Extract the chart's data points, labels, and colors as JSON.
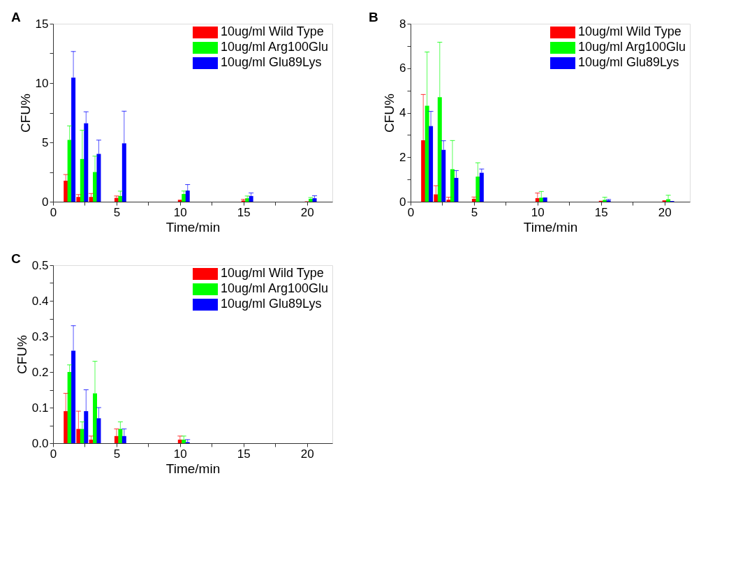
{
  "chart_data": [
    {
      "type": "bar",
      "title": "A",
      "xlabel": "Time/min",
      "ylabel": "CFU%",
      "xlim": [
        0,
        22
      ],
      "xticks": [
        0,
        {
          "value": 2.5,
          "label": null
        },
        5,
        {
          "value": 7.5,
          "label": null
        },
        10,
        {
          "value": 12.5,
          "label": null
        },
        15,
        {
          "value": 17.5,
          "label": null
        },
        20
      ],
      "ylim": [
        0,
        15
      ],
      "yticks": [
        0,
        {
          "value": 2.5,
          "label": null
        },
        5,
        {
          "value": 7.5,
          "label": null
        },
        10,
        {
          "value": 12.5,
          "label": null
        },
        15
      ],
      "grid": false,
      "legend": "top right",
      "series": [
        {
          "name": "10ug/ml Wild Type",
          "color": "#ff0000",
          "x": [
            1,
            2,
            3,
            5,
            10,
            15,
            20
          ],
          "values": [
            1.77,
            0.4,
            0.4,
            0.32,
            0.16,
            0.1,
            0.03
          ],
          "errors": [
            [
              1.77,
              2.29
            ],
            [
              0.4,
              0.6
            ],
            [
              0.4,
              0.69
            ],
            [
              0.32,
              0.48
            ],
            null,
            [
              0.1,
              0.2
            ],
            null
          ]
        },
        {
          "name": "10ug/ml Arg100Glu",
          "color": "#00ff00",
          "x": [
            1.3,
            2.3,
            3.3,
            5.3,
            10.3,
            15.3,
            20.3
          ],
          "values": [
            5.21,
            3.6,
            2.5,
            0.48,
            0.65,
            0.29,
            0.24
          ],
          "errors": [
            [
              5.21,
              6.39
            ],
            [
              3.6,
              6.02
            ],
            [
              2.5,
              3.84
            ],
            [
              0.48,
              0.89
            ],
            [
              0.65,
              0.9
            ],
            [
              0.29,
              0.48
            ],
            [
              0.24,
              0.35
            ]
          ]
        },
        {
          "name": "10ug/ml Glu89Lys",
          "color": "#0000ff",
          "x": [
            1.6,
            2.6,
            3.6,
            5.6,
            10.6,
            15.6,
            20.6
          ],
          "values": [
            10.45,
            6.61,
            4.03,
            4.92,
            0.94,
            0.48,
            0.29
          ],
          "errors": [
            [
              10.45,
              12.66
            ],
            [
              6.61,
              7.58
            ],
            [
              4.03,
              5.19
            ],
            [
              4.92,
              7.63
            ],
            [
              0.94,
              1.44
            ],
            [
              0.48,
              0.74
            ],
            [
              0.29,
              0.5
            ]
          ]
        }
      ]
    },
    {
      "type": "bar",
      "title": "B",
      "xlabel": "Time/min",
      "ylabel": "CFU%",
      "xlim": [
        0,
        22
      ],
      "xticks": [
        0,
        {
          "value": 2.5,
          "label": null
        },
        5,
        {
          "value": 7.5,
          "label": null
        },
        10,
        {
          "value": 12.5,
          "label": null
        },
        15,
        {
          "value": 17.5,
          "label": null
        },
        20
      ],
      "ylim": [
        0,
        8
      ],
      "yticks": [
        0,
        {
          "value": 1,
          "label": null
        },
        2,
        {
          "value": 3,
          "label": null
        },
        4,
        {
          "value": 5,
          "label": null
        },
        6,
        {
          "value": 7,
          "label": null
        },
        8
      ],
      "grid": false,
      "legend": "top right",
      "series": [
        {
          "name": "10ug/ml Wild Type",
          "color": "#ff0000",
          "x": [
            1,
            2,
            3,
            5,
            10,
            15,
            20
          ],
          "values": [
            2.76,
            0.33,
            0.09,
            0.13,
            0.16,
            0.04,
            0.06
          ],
          "errors": [
            [
              2.76,
              4.82
            ],
            [
              0.33,
              0.72
            ],
            [
              0.09,
              0.2
            ],
            [
              0.13,
              0.21
            ],
            [
              0.16,
              0.39
            ],
            null,
            null
          ]
        },
        {
          "name": "10ug/ml Arg100Glu",
          "color": "#00ff00",
          "x": [
            1.3,
            2.3,
            3.3,
            5.3,
            10.3,
            15.3,
            20.3
          ],
          "values": [
            4.31,
            4.7,
            1.46,
            1.13,
            0.18,
            0.08,
            0.11
          ],
          "errors": [
            [
              4.31,
              6.73
            ],
            [
              4.7,
              7.17
            ],
            [
              1.46,
              2.75
            ],
            [
              1.13,
              1.75
            ],
            [
              0.18,
              0.46
            ],
            [
              0.08,
              0.2
            ],
            [
              0.11,
              0.29
            ]
          ]
        },
        {
          "name": "10ug/ml Glu89Lys",
          "color": "#0000ff",
          "x": [
            1.6,
            2.6,
            3.6,
            5.6,
            10.6,
            15.6,
            20.6
          ],
          "values": [
            3.4,
            2.33,
            1.07,
            1.3,
            0.19,
            0.06,
            0.03
          ],
          "errors": [
            [
              3.4,
              4.06
            ],
            [
              2.33,
              2.74
            ],
            [
              1.07,
              1.4
            ],
            [
              1.3,
              1.47
            ],
            null,
            [
              0.06,
              0.1
            ],
            null
          ]
        }
      ]
    },
    {
      "type": "bar",
      "title": "C",
      "xlabel": "Time/min",
      "ylabel": "CFU%",
      "xlim": [
        0,
        22
      ],
      "xticks": [
        0,
        {
          "value": 2.5,
          "label": null
        },
        5,
        {
          "value": 7.5,
          "label": null
        },
        10,
        {
          "value": 12.5,
          "label": null
        },
        15,
        {
          "value": 17.5,
          "label": null
        },
        20
      ],
      "ylim": [
        0,
        0.5
      ],
      "yticks": [
        {
          "value": 0,
          "label": "0.0"
        },
        {
          "value": 0.05,
          "label": null
        },
        0.1,
        {
          "value": 0.15,
          "label": null
        },
        0.2,
        {
          "value": 0.25,
          "label": null
        },
        0.3,
        {
          "value": 0.35,
          "label": null
        },
        0.4,
        {
          "value": 0.45,
          "label": null
        },
        0.5
      ],
      "grid": false,
      "legend": "top right",
      "series": [
        {
          "name": "10ug/ml Wild Type",
          "color": "#ff0000",
          "x": [
            1,
            2,
            3,
            5,
            10
          ],
          "values": [
            0.09,
            0.04,
            0.01,
            0.02,
            0.01
          ],
          "errors": [
            [
              0.09,
              0.14
            ],
            [
              0.04,
              0.09
            ],
            [
              0.01,
              0.02
            ],
            [
              0.02,
              0.04
            ],
            [
              0.01,
              0.02
            ]
          ]
        },
        {
          "name": "10ug/ml Arg100Glu",
          "color": "#00ff00",
          "x": [
            1.3,
            2.3,
            3.3,
            5.3,
            10.3
          ],
          "values": [
            0.2,
            0.04,
            0.14,
            0.04,
            0.01
          ],
          "errors": [
            [
              0.2,
              0.22
            ],
            [
              0.04,
              0.06
            ],
            [
              0.14,
              0.23
            ],
            [
              0.04,
              0.06
            ],
            [
              0.01,
              0.02
            ]
          ]
        },
        {
          "name": "10ug/ml Glu89Lys",
          "color": "#0000ff",
          "x": [
            1.6,
            2.6,
            3.6,
            5.6,
            10.6
          ],
          "values": [
            0.26,
            0.09,
            0.07,
            0.02,
            0.003
          ],
          "errors": [
            [
              0.26,
              0.33
            ],
            [
              0.09,
              0.15
            ],
            [
              0.07,
              0.1
            ],
            [
              0.02,
              0.04
            ],
            [
              0.003,
              0.01
            ]
          ]
        }
      ]
    }
  ]
}
